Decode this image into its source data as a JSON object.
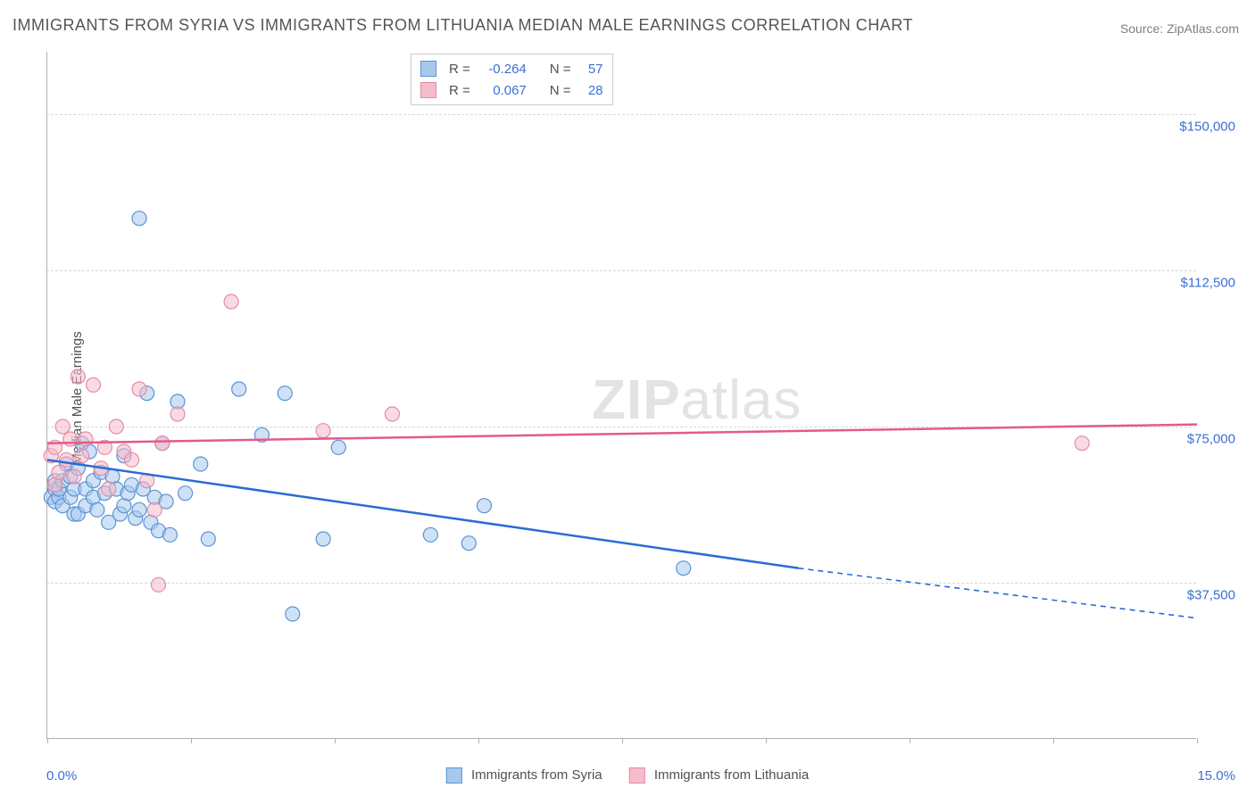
{
  "title": "IMMIGRANTS FROM SYRIA VS IMMIGRANTS FROM LITHUANIA MEDIAN MALE EARNINGS CORRELATION CHART",
  "source": "Source: ZipAtlas.com",
  "ylabel": "Median Male Earnings",
  "chart": {
    "type": "scatter",
    "background_color": "#ffffff",
    "grid_color": "#d8d8d8",
    "axis_color": "#b0b0b0",
    "xlim": [
      0.0,
      15.0
    ],
    "ylim": [
      0,
      165000
    ],
    "x_axis": {
      "min_label": "0.0%",
      "max_label": "15.0%",
      "label_color": "#3b6fd4",
      "tick_positions_pct": [
        0,
        12.5,
        25,
        37.5,
        50,
        62.5,
        75,
        87.5,
        100
      ]
    },
    "y_axis": {
      "gridlines": [
        {
          "value": 37500,
          "label": "$37,500"
        },
        {
          "value": 75000,
          "label": "$75,000"
        },
        {
          "value": 112500,
          "label": "$112,500"
        },
        {
          "value": 150000,
          "label": "$150,000"
        }
      ],
      "label_color": "#3b6fd4"
    },
    "series": [
      {
        "name": "Immigrants from Syria",
        "fill_color": "#a7c8ed",
        "stroke_color": "#5a93d4",
        "fill_opacity": 0.55,
        "line_color": "#2a6cd4",
        "line_width": 2.5,
        "marker_radius": 8,
        "R": "-0.264",
        "N": "57",
        "regression": {
          "x1": 0.0,
          "y1": 67000,
          "x2_solid": 9.8,
          "y2_solid": 41000,
          "x2_dash": 15.0,
          "y2_dash": 29000
        },
        "points": [
          [
            0.05,
            58000
          ],
          [
            0.1,
            60000
          ],
          [
            0.1,
            57000
          ],
          [
            0.1,
            62000
          ],
          [
            0.15,
            58000
          ],
          [
            0.15,
            60000
          ],
          [
            0.2,
            56000
          ],
          [
            0.2,
            62000
          ],
          [
            0.25,
            66000
          ],
          [
            0.3,
            58000
          ],
          [
            0.3,
            63000
          ],
          [
            0.35,
            54000
          ],
          [
            0.35,
            60000
          ],
          [
            0.4,
            65000
          ],
          [
            0.4,
            54000
          ],
          [
            0.45,
            71000
          ],
          [
            0.5,
            56000
          ],
          [
            0.5,
            60000
          ],
          [
            0.55,
            69000
          ],
          [
            0.6,
            62000
          ],
          [
            0.6,
            58000
          ],
          [
            0.65,
            55000
          ],
          [
            0.7,
            64000
          ],
          [
            0.75,
            59000
          ],
          [
            0.8,
            52000
          ],
          [
            0.85,
            63000
          ],
          [
            0.9,
            60000
          ],
          [
            0.95,
            54000
          ],
          [
            1.0,
            56000
          ],
          [
            1.0,
            68000
          ],
          [
            1.05,
            59000
          ],
          [
            1.1,
            61000
          ],
          [
            1.15,
            53000
          ],
          [
            1.2,
            125000
          ],
          [
            1.2,
            55000
          ],
          [
            1.25,
            60000
          ],
          [
            1.3,
            83000
          ],
          [
            1.35,
            52000
          ],
          [
            1.4,
            58000
          ],
          [
            1.45,
            50000
          ],
          [
            1.5,
            71000
          ],
          [
            1.55,
            57000
          ],
          [
            1.6,
            49000
          ],
          [
            1.7,
            81000
          ],
          [
            1.8,
            59000
          ],
          [
            2.0,
            66000
          ],
          [
            2.1,
            48000
          ],
          [
            2.5,
            84000
          ],
          [
            2.8,
            73000
          ],
          [
            3.1,
            83000
          ],
          [
            3.2,
            30000
          ],
          [
            3.6,
            48000
          ],
          [
            3.8,
            70000
          ],
          [
            5.0,
            49000
          ],
          [
            5.5,
            47000
          ],
          [
            5.7,
            56000
          ],
          [
            8.3,
            41000
          ]
        ]
      },
      {
        "name": "Immigrants from Lithuania",
        "fill_color": "#f5bccb",
        "stroke_color": "#e68aa5",
        "fill_opacity": 0.55,
        "line_color": "#e35b86",
        "line_width": 2.5,
        "marker_radius": 8,
        "R": "0.067",
        "N": "28",
        "regression": {
          "x1": 0.0,
          "y1": 71000,
          "x2_solid": 15.0,
          "y2_solid": 75500,
          "x2_dash": 15.0,
          "y2_dash": 75500
        },
        "points": [
          [
            0.05,
            68000
          ],
          [
            0.1,
            70000
          ],
          [
            0.1,
            61000
          ],
          [
            0.15,
            64000
          ],
          [
            0.2,
            75000
          ],
          [
            0.25,
            67000
          ],
          [
            0.3,
            72000
          ],
          [
            0.35,
            63000
          ],
          [
            0.4,
            87000
          ],
          [
            0.45,
            68000
          ],
          [
            0.5,
            72000
          ],
          [
            0.6,
            85000
          ],
          [
            0.7,
            65000
          ],
          [
            0.75,
            70000
          ],
          [
            0.8,
            60000
          ],
          [
            0.9,
            75000
          ],
          [
            1.0,
            69000
          ],
          [
            1.1,
            67000
          ],
          [
            1.2,
            84000
          ],
          [
            1.3,
            62000
          ],
          [
            1.4,
            55000
          ],
          [
            1.45,
            37000
          ],
          [
            1.5,
            71000
          ],
          [
            1.7,
            78000
          ],
          [
            2.4,
            105000
          ],
          [
            3.6,
            74000
          ],
          [
            4.5,
            78000
          ],
          [
            13.5,
            71000
          ]
        ]
      }
    ],
    "legend_top": {
      "border_color": "#cccccc",
      "R_color": "#505050",
      "value_color": "#3b6fd4"
    },
    "watermark": {
      "text_bold": "ZIP",
      "text_rest": "atlas",
      "color": "#e3e3e3",
      "fontsize": 62
    }
  },
  "legend_bottom": [
    {
      "label": "Immigrants from Syria",
      "fill": "#a7c8ed",
      "stroke": "#5a93d4"
    },
    {
      "label": "Immigrants from Lithuania",
      "fill": "#f5bccb",
      "stroke": "#e68aa5"
    }
  ]
}
